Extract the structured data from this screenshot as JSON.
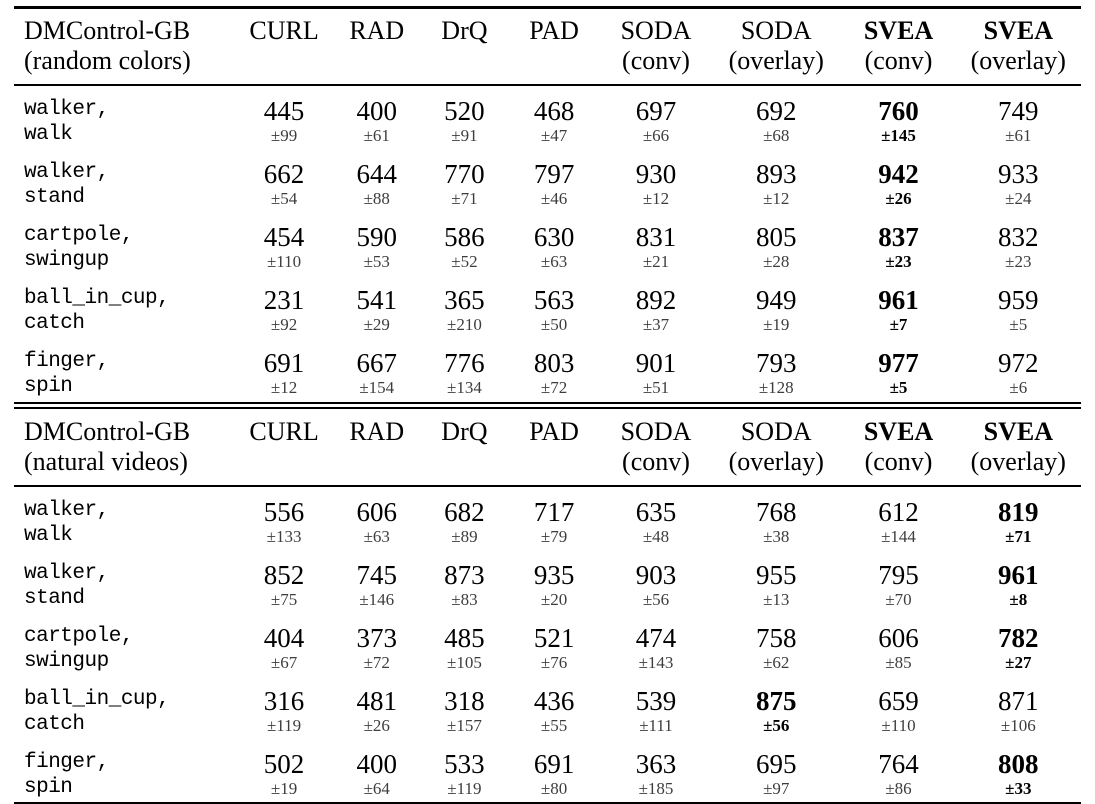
{
  "page": {
    "background_color": "#ffffff",
    "text_color": "#000000",
    "pm_text_color": "#3d3d3d"
  },
  "tables": [
    {
      "id": "random-colors",
      "header": {
        "title_line1": "DMControl-GB",
        "title_line2": "(random colors)"
      },
      "columns": [
        {
          "label": "CURL",
          "sub": "",
          "bold": false
        },
        {
          "label": "RAD",
          "sub": "",
          "bold": false
        },
        {
          "label": "DrQ",
          "sub": "",
          "bold": false
        },
        {
          "label": "PAD",
          "sub": "",
          "bold": false
        },
        {
          "label": "SODA",
          "sub": "(conv)",
          "bold": false
        },
        {
          "label": "SODA",
          "sub": "(overlay)",
          "bold": false
        },
        {
          "label": "SVEA",
          "sub": "(conv)",
          "bold": true
        },
        {
          "label": "SVEA",
          "sub": "(overlay)",
          "bold": true
        }
      ],
      "rows": [
        {
          "task_line1": "walker,",
          "task_line2": "walk",
          "cells": [
            {
              "v": "445",
              "pm": "±99",
              "bold": false
            },
            {
              "v": "400",
              "pm": "±61",
              "bold": false
            },
            {
              "v": "520",
              "pm": "±91",
              "bold": false
            },
            {
              "v": "468",
              "pm": "±47",
              "bold": false
            },
            {
              "v": "697",
              "pm": "±66",
              "bold": false
            },
            {
              "v": "692",
              "pm": "±68",
              "bold": false
            },
            {
              "v": "760",
              "pm": "±145",
              "bold": true
            },
            {
              "v": "749",
              "pm": "±61",
              "bold": false
            }
          ]
        },
        {
          "task_line1": "walker,",
          "task_line2": "stand",
          "cells": [
            {
              "v": "662",
              "pm": "±54",
              "bold": false
            },
            {
              "v": "644",
              "pm": "±88",
              "bold": false
            },
            {
              "v": "770",
              "pm": "±71",
              "bold": false
            },
            {
              "v": "797",
              "pm": "±46",
              "bold": false
            },
            {
              "v": "930",
              "pm": "±12",
              "bold": false
            },
            {
              "v": "893",
              "pm": "±12",
              "bold": false
            },
            {
              "v": "942",
              "pm": "±26",
              "bold": true
            },
            {
              "v": "933",
              "pm": "±24",
              "bold": false
            }
          ]
        },
        {
          "task_line1": "cartpole,",
          "task_line2": "swingup",
          "cells": [
            {
              "v": "454",
              "pm": "±110",
              "bold": false
            },
            {
              "v": "590",
              "pm": "±53",
              "bold": false
            },
            {
              "v": "586",
              "pm": "±52",
              "bold": false
            },
            {
              "v": "630",
              "pm": "±63",
              "bold": false
            },
            {
              "v": "831",
              "pm": "±21",
              "bold": false
            },
            {
              "v": "805",
              "pm": "±28",
              "bold": false
            },
            {
              "v": "837",
              "pm": "±23",
              "bold": true
            },
            {
              "v": "832",
              "pm": "±23",
              "bold": false
            }
          ]
        },
        {
          "task_line1": "ball_in_cup,",
          "task_line2": "catch",
          "cells": [
            {
              "v": "231",
              "pm": "±92",
              "bold": false
            },
            {
              "v": "541",
              "pm": "±29",
              "bold": false
            },
            {
              "v": "365",
              "pm": "±210",
              "bold": false
            },
            {
              "v": "563",
              "pm": "±50",
              "bold": false
            },
            {
              "v": "892",
              "pm": "±37",
              "bold": false
            },
            {
              "v": "949",
              "pm": "±19",
              "bold": false
            },
            {
              "v": "961",
              "pm": "±7",
              "bold": true
            },
            {
              "v": "959",
              "pm": "±5",
              "bold": false
            }
          ]
        },
        {
          "task_line1": "finger,",
          "task_line2": "spin",
          "cells": [
            {
              "v": "691",
              "pm": "±12",
              "bold": false
            },
            {
              "v": "667",
              "pm": "±154",
              "bold": false
            },
            {
              "v": "776",
              "pm": "±134",
              "bold": false
            },
            {
              "v": "803",
              "pm": "±72",
              "bold": false
            },
            {
              "v": "901",
              "pm": "±51",
              "bold": false
            },
            {
              "v": "793",
              "pm": "±128",
              "bold": false
            },
            {
              "v": "977",
              "pm": "±5",
              "bold": true
            },
            {
              "v": "972",
              "pm": "±6",
              "bold": false
            }
          ]
        }
      ]
    },
    {
      "id": "natural-videos",
      "header": {
        "title_line1": "DMControl-GB",
        "title_line2": "(natural videos)"
      },
      "columns": [
        {
          "label": "CURL",
          "sub": "",
          "bold": false
        },
        {
          "label": "RAD",
          "sub": "",
          "bold": false
        },
        {
          "label": "DrQ",
          "sub": "",
          "bold": false
        },
        {
          "label": "PAD",
          "sub": "",
          "bold": false
        },
        {
          "label": "SODA",
          "sub": "(conv)",
          "bold": false
        },
        {
          "label": "SODA",
          "sub": "(overlay)",
          "bold": false
        },
        {
          "label": "SVEA",
          "sub": "(conv)",
          "bold": true
        },
        {
          "label": "SVEA",
          "sub": "(overlay)",
          "bold": true
        }
      ],
      "rows": [
        {
          "task_line1": "walker,",
          "task_line2": "walk",
          "cells": [
            {
              "v": "556",
              "pm": "±133",
              "bold": false
            },
            {
              "v": "606",
              "pm": "±63",
              "bold": false
            },
            {
              "v": "682",
              "pm": "±89",
              "bold": false
            },
            {
              "v": "717",
              "pm": "±79",
              "bold": false
            },
            {
              "v": "635",
              "pm": "±48",
              "bold": false
            },
            {
              "v": "768",
              "pm": "±38",
              "bold": false
            },
            {
              "v": "612",
              "pm": "±144",
              "bold": false
            },
            {
              "v": "819",
              "pm": "±71",
              "bold": true
            }
          ]
        },
        {
          "task_line1": "walker,",
          "task_line2": "stand",
          "cells": [
            {
              "v": "852",
              "pm": "±75",
              "bold": false
            },
            {
              "v": "745",
              "pm": "±146",
              "bold": false
            },
            {
              "v": "873",
              "pm": "±83",
              "bold": false
            },
            {
              "v": "935",
              "pm": "±20",
              "bold": false
            },
            {
              "v": "903",
              "pm": "±56",
              "bold": false
            },
            {
              "v": "955",
              "pm": "±13",
              "bold": false
            },
            {
              "v": "795",
              "pm": "±70",
              "bold": false
            },
            {
              "v": "961",
              "pm": "±8",
              "bold": true
            }
          ]
        },
        {
          "task_line1": "cartpole,",
          "task_line2": "swingup",
          "cells": [
            {
              "v": "404",
              "pm": "±67",
              "bold": false
            },
            {
              "v": "373",
              "pm": "±72",
              "bold": false
            },
            {
              "v": "485",
              "pm": "±105",
              "bold": false
            },
            {
              "v": "521",
              "pm": "±76",
              "bold": false
            },
            {
              "v": "474",
              "pm": "±143",
              "bold": false
            },
            {
              "v": "758",
              "pm": "±62",
              "bold": false
            },
            {
              "v": "606",
              "pm": "±85",
              "bold": false
            },
            {
              "v": "782",
              "pm": "±27",
              "bold": true
            }
          ]
        },
        {
          "task_line1": "ball_in_cup,",
          "task_line2": "catch",
          "cells": [
            {
              "v": "316",
              "pm": "±119",
              "bold": false
            },
            {
              "v": "481",
              "pm": "±26",
              "bold": false
            },
            {
              "v": "318",
              "pm": "±157",
              "bold": false
            },
            {
              "v": "436",
              "pm": "±55",
              "bold": false
            },
            {
              "v": "539",
              "pm": "±111",
              "bold": false
            },
            {
              "v": "875",
              "pm": "±56",
              "bold": true
            },
            {
              "v": "659",
              "pm": "±110",
              "bold": false
            },
            {
              "v": "871",
              "pm": "±106",
              "bold": false
            }
          ]
        },
        {
          "task_line1": "finger,",
          "task_line2": "spin",
          "cells": [
            {
              "v": "502",
              "pm": "±19",
              "bold": false
            },
            {
              "v": "400",
              "pm": "±64",
              "bold": false
            },
            {
              "v": "533",
              "pm": "±119",
              "bold": false
            },
            {
              "v": "691",
              "pm": "±80",
              "bold": false
            },
            {
              "v": "363",
              "pm": "±185",
              "bold": false
            },
            {
              "v": "695",
              "pm": "±97",
              "bold": false
            },
            {
              "v": "764",
              "pm": "±86",
              "bold": false
            },
            {
              "v": "808",
              "pm": "±33",
              "bold": true
            }
          ]
        }
      ]
    }
  ]
}
